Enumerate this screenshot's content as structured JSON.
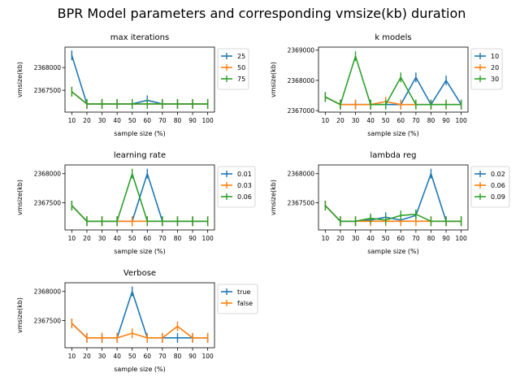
{
  "suptitle": "BPR Model parameters and corresponding vmsize(kb) duration",
  "colors": [
    "#1f77b4",
    "#ff7f0e",
    "#2ca02c"
  ],
  "chart_data": [
    {
      "type": "line",
      "title": "max iterations",
      "xlabel": "sample size (%)",
      "ylabel": "vmsize(kb)",
      "x": [
        10,
        20,
        30,
        40,
        50,
        60,
        70,
        80,
        90,
        100
      ],
      "ylim": [
        2367020,
        2368450
      ],
      "yticks": [
        2367500,
        2368000
      ],
      "ytick_labels": [
        "2367500",
        "2368000"
      ],
      "series": [
        {
          "name": "25",
          "values": [
            2368270,
            2367200,
            2367200,
            2367200,
            2367200,
            2367280,
            2367200,
            2367200,
            2367200,
            2367200
          ]
        },
        {
          "name": "50",
          "values": [
            2367470,
            2367200,
            2367200,
            2367200,
            2367200,
            2367200,
            2367200,
            2367200,
            2367200,
            2367200
          ]
        },
        {
          "name": "75",
          "values": [
            2367470,
            2367200,
            2367200,
            2367200,
            2367200,
            2367200,
            2367200,
            2367200,
            2367200,
            2367200
          ]
        }
      ]
    },
    {
      "type": "line",
      "title": "k models",
      "xlabel": "sample size (%)",
      "ylabel": "vmsize(kb)",
      "x": [
        10,
        20,
        30,
        40,
        50,
        60,
        70,
        80,
        90,
        100
      ],
      "ylim": [
        2366950,
        2369100
      ],
      "yticks": [
        2367000,
        2368000,
        2369000
      ],
      "ytick_labels": [
        "2367000",
        "2368000",
        "2369000"
      ],
      "series": [
        {
          "name": "10",
          "values": [
            2367450,
            2367200,
            2367200,
            2367200,
            2367200,
            2367200,
            2368100,
            2367200,
            2368000,
            2367200
          ]
        },
        {
          "name": "20",
          "values": [
            2367450,
            2367200,
            2367200,
            2367200,
            2367300,
            2367200,
            2367200,
            2367200,
            2367200,
            2367200
          ]
        },
        {
          "name": "30",
          "values": [
            2367450,
            2367200,
            2368800,
            2367200,
            2367200,
            2368100,
            2367200,
            2367200,
            2367200,
            2367200
          ]
        }
      ]
    },
    {
      "type": "line",
      "title": "learning rate",
      "xlabel": "sample size (%)",
      "ylabel": "vmsize(kb)",
      "x": [
        10,
        20,
        30,
        40,
        50,
        60,
        70,
        80,
        90,
        100
      ],
      "ylim": [
        2367030,
        2368150
      ],
      "yticks": [
        2367500,
        2368000
      ],
      "ytick_labels": [
        "2367500",
        "2368000"
      ],
      "series": [
        {
          "name": "0.01",
          "values": [
            2367450,
            2367180,
            2367180,
            2367180,
            2367180,
            2368000,
            2367180,
            2367180,
            2367180,
            2367180
          ]
        },
        {
          "name": "0.03",
          "values": [
            2367450,
            2367180,
            2367180,
            2367180,
            2367180,
            2367180,
            2367180,
            2367180,
            2367180,
            2367180
          ]
        },
        {
          "name": "0.06",
          "values": [
            2367450,
            2367180,
            2367180,
            2367180,
            2368000,
            2367180,
            2367180,
            2367180,
            2367180,
            2367180
          ]
        }
      ]
    },
    {
      "type": "line",
      "title": "lambda reg",
      "xlabel": "sample size (%)",
      "ylabel": "vmsize(kb)",
      "x": [
        10,
        20,
        30,
        40,
        50,
        60,
        70,
        80,
        90,
        100
      ],
      "ylim": [
        2367030,
        2368150
      ],
      "yticks": [
        2367500,
        2368000
      ],
      "ytick_labels": [
        "2367500",
        "2368000"
      ],
      "series": [
        {
          "name": "0.02",
          "values": [
            2367450,
            2367180,
            2367180,
            2367200,
            2367250,
            2367200,
            2367280,
            2368000,
            2367180,
            2367180
          ]
        },
        {
          "name": "0.06",
          "values": [
            2367450,
            2367180,
            2367180,
            2367180,
            2367180,
            2367180,
            2367180,
            2367180,
            2367180,
            2367180
          ]
        },
        {
          "name": "0.09",
          "values": [
            2367450,
            2367180,
            2367180,
            2367230,
            2367200,
            2367280,
            2367300,
            2367180,
            2367180,
            2367180
          ]
        }
      ]
    },
    {
      "type": "line",
      "title": "Verbose",
      "xlabel": "sample size (%)",
      "ylabel": "vmsize(kb)",
      "x": [
        10,
        20,
        30,
        40,
        50,
        60,
        70,
        80,
        90,
        100
      ],
      "ylim": [
        2367030,
        2368150
      ],
      "yticks": [
        2367500,
        2368000
      ],
      "ytick_labels": [
        "2367500",
        "2368000"
      ],
      "series": [
        {
          "name": "true",
          "values": [
            2367450,
            2367200,
            2367200,
            2367200,
            2368000,
            2367200,
            2367200,
            2367200,
            2367200,
            2367200
          ]
        },
        {
          "name": "false",
          "values": [
            2367450,
            2367200,
            2367200,
            2367200,
            2367280,
            2367200,
            2367200,
            2367400,
            2367200,
            2367200
          ]
        }
      ]
    }
  ]
}
